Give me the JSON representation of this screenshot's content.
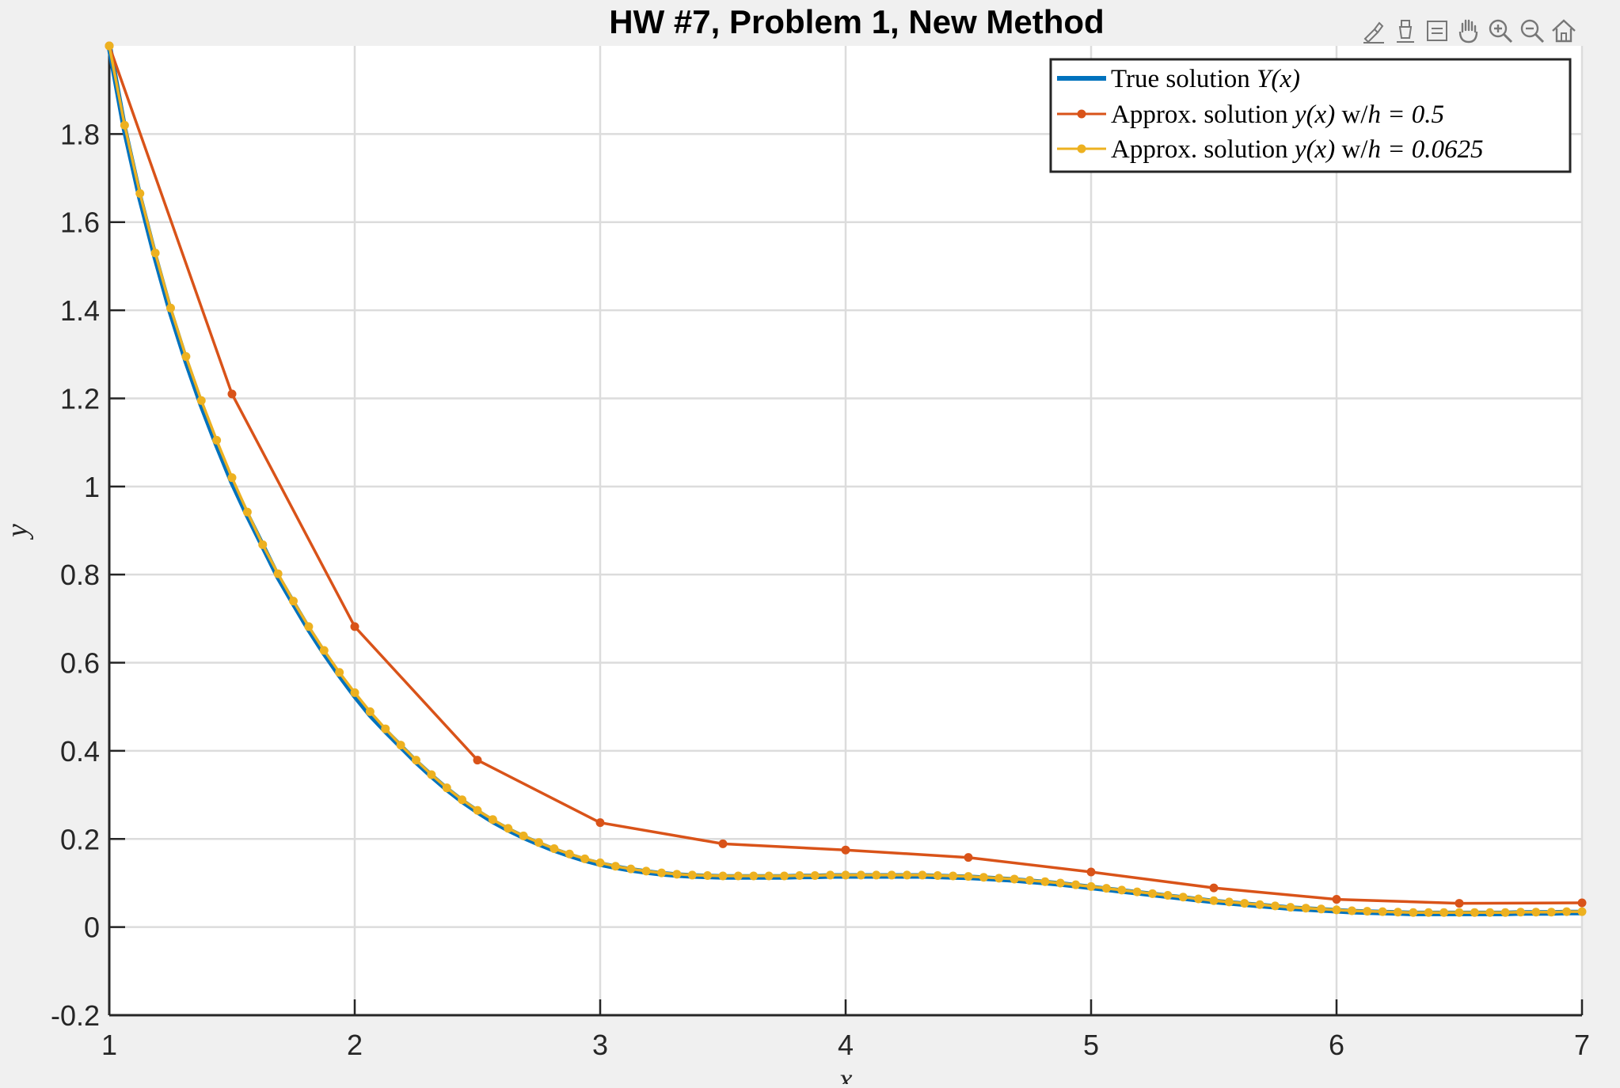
{
  "chart_data": {
    "type": "line",
    "title": "HW #7, Problem 1, New Method",
    "xlabel": "x",
    "ylabel": "y",
    "xlim": [
      1,
      7
    ],
    "ylim": [
      -0.2,
      2.0
    ],
    "xticks": [
      1,
      2,
      3,
      4,
      5,
      6,
      7
    ],
    "yticks": [
      -0.2,
      0,
      0.2,
      0.4,
      0.6,
      0.8,
      1,
      1.2,
      1.4,
      1.6,
      1.8
    ],
    "xtick_labels": [
      "1",
      "2",
      "3",
      "4",
      "5",
      "6",
      "7"
    ],
    "ytick_labels": [
      "-0.2",
      "0",
      "0.2",
      "0.4",
      "0.6",
      "0.8",
      "1",
      "1.2",
      "1.4",
      "1.6",
      "1.8"
    ],
    "grid": true,
    "legend_position": "top-right",
    "series": [
      {
        "name": "True solution Y(x)",
        "legend": {
          "text": "True solution ",
          "math": "Y(x)"
        },
        "color": "#0072bd",
        "marker": false,
        "x": [
          1,
          1.0625,
          1.125,
          1.1875,
          1.25,
          1.3125,
          1.375,
          1.4375,
          1.5,
          1.5625,
          1.625,
          1.6875,
          1.75,
          1.8125,
          1.875,
          1.9375,
          2,
          2.0625,
          2.125,
          2.1875,
          2.25,
          2.3125,
          2.375,
          2.4375,
          2.5,
          2.5625,
          2.625,
          2.6875,
          2.75,
          2.8125,
          2.875,
          2.9375,
          3,
          3.0625,
          3.125,
          3.1875,
          3.25,
          3.3125,
          3.375,
          3.4375,
          3.5,
          3.5625,
          3.625,
          3.6875,
          3.75,
          3.8125,
          3.875,
          3.9375,
          4,
          4.0625,
          4.125,
          4.1875,
          4.25,
          4.3125,
          4.375,
          4.4375,
          4.5,
          4.5625,
          4.625,
          4.6875,
          4.75,
          4.8125,
          4.875,
          4.9375,
          5,
          5.0625,
          5.125,
          5.1875,
          5.25,
          5.3125,
          5.375,
          5.4375,
          5.5,
          5.5625,
          5.625,
          5.6875,
          5.75,
          5.8125,
          5.875,
          5.9375,
          6,
          6.0625,
          6.125,
          6.1875,
          6.25,
          6.3125,
          6.375,
          6.4375,
          6.5,
          6.5625,
          6.625,
          6.6875,
          6.75,
          6.8125,
          6.875,
          6.9375,
          7
        ],
        "y": [
          2.0,
          1.81,
          1.655,
          1.52,
          1.395,
          1.285,
          1.185,
          1.095,
          1.01,
          0.935,
          0.865,
          0.795,
          0.735,
          0.676,
          0.622,
          0.572,
          0.525,
          0.482,
          0.445,
          0.41,
          0.375,
          0.343,
          0.313,
          0.286,
          0.262,
          0.24,
          0.221,
          0.204,
          0.189,
          0.175,
          0.163,
          0.152,
          0.143,
          0.136,
          0.13,
          0.125,
          0.121,
          0.118,
          0.116,
          0.115,
          0.114,
          0.114,
          0.114,
          0.114,
          0.114,
          0.115,
          0.115,
          0.116,
          0.116,
          0.116,
          0.116,
          0.116,
          0.116,
          0.116,
          0.115,
          0.114,
          0.113,
          0.111,
          0.109,
          0.107,
          0.104,
          0.101,
          0.098,
          0.094,
          0.09,
          0.086,
          0.082,
          0.078,
          0.074,
          0.07,
          0.066,
          0.062,
          0.058,
          0.055,
          0.052,
          0.049,
          0.046,
          0.043,
          0.041,
          0.039,
          0.037,
          0.035,
          0.034,
          0.033,
          0.032,
          0.031,
          0.031,
          0.031,
          0.031,
          0.031,
          0.031,
          0.031,
          0.032,
          0.032,
          0.032,
          0.033,
          0.033
        ]
      },
      {
        "name": "Approx. solution y(x) w/h = 0.5",
        "legend": {
          "text": "Approx. solution ",
          "math": "y(x)",
          "text2": " w/",
          "math2": "h = 0.5"
        },
        "color": "#d95319",
        "marker": true,
        "x": [
          1,
          1.5,
          2,
          2.5,
          3,
          3.5,
          4,
          4.5,
          5,
          5.5,
          6,
          6.5,
          7
        ],
        "y": [
          2.0,
          1.21,
          0.682,
          0.379,
          0.237,
          0.189,
          0.175,
          0.158,
          0.125,
          0.089,
          0.063,
          0.054,
          0.055
        ]
      },
      {
        "name": "Approx. solution y(x) w/h = 0.0625",
        "legend": {
          "text": "Approx. solution ",
          "math": "y(x)",
          "text2": " w/",
          "math2": "h = 0.0625"
        },
        "color": "#edb120",
        "marker": true,
        "x": [
          1,
          1.0625,
          1.125,
          1.1875,
          1.25,
          1.3125,
          1.375,
          1.4375,
          1.5,
          1.5625,
          1.625,
          1.6875,
          1.75,
          1.8125,
          1.875,
          1.9375,
          2,
          2.0625,
          2.125,
          2.1875,
          2.25,
          2.3125,
          2.375,
          2.4375,
          2.5,
          2.5625,
          2.625,
          2.6875,
          2.75,
          2.8125,
          2.875,
          2.9375,
          3,
          3.0625,
          3.125,
          3.1875,
          3.25,
          3.3125,
          3.375,
          3.4375,
          3.5,
          3.5625,
          3.625,
          3.6875,
          3.75,
          3.8125,
          3.875,
          3.9375,
          4,
          4.0625,
          4.125,
          4.1875,
          4.25,
          4.3125,
          4.375,
          4.4375,
          4.5,
          4.5625,
          4.625,
          4.6875,
          4.75,
          4.8125,
          4.875,
          4.9375,
          5,
          5.0625,
          5.125,
          5.1875,
          5.25,
          5.3125,
          5.375,
          5.4375,
          5.5,
          5.5625,
          5.625,
          5.6875,
          5.75,
          5.8125,
          5.875,
          5.9375,
          6,
          6.0625,
          6.125,
          6.1875,
          6.25,
          6.3125,
          6.375,
          6.4375,
          6.5,
          6.5625,
          6.625,
          6.6875,
          6.75,
          6.8125,
          6.875,
          6.9375,
          7
        ],
        "y": [
          2.0,
          1.82,
          1.665,
          1.53,
          1.405,
          1.295,
          1.195,
          1.105,
          1.02,
          0.942,
          0.868,
          0.802,
          0.74,
          0.682,
          0.628,
          0.578,
          0.532,
          0.489,
          0.45,
          0.413,
          0.379,
          0.346,
          0.316,
          0.289,
          0.265,
          0.244,
          0.224,
          0.207,
          0.192,
          0.178,
          0.166,
          0.155,
          0.146,
          0.138,
          0.132,
          0.127,
          0.123,
          0.12,
          0.118,
          0.117,
          0.116,
          0.116,
          0.116,
          0.116,
          0.116,
          0.117,
          0.117,
          0.118,
          0.118,
          0.118,
          0.118,
          0.118,
          0.118,
          0.118,
          0.117,
          0.116,
          0.115,
          0.113,
          0.111,
          0.109,
          0.106,
          0.103,
          0.1,
          0.096,
          0.092,
          0.088,
          0.084,
          0.08,
          0.076,
          0.072,
          0.068,
          0.064,
          0.06,
          0.057,
          0.054,
          0.051,
          0.048,
          0.045,
          0.043,
          0.041,
          0.039,
          0.037,
          0.036,
          0.035,
          0.034,
          0.033,
          0.033,
          0.033,
          0.033,
          0.033,
          0.033,
          0.033,
          0.034,
          0.034,
          0.034,
          0.035,
          0.035
        ]
      }
    ]
  },
  "toolbar": {
    "icons": [
      "brush-icon",
      "data-tips-icon",
      "datatip-icon",
      "pan-hand-icon",
      "zoom-in-icon",
      "zoom-out-icon",
      "home-icon"
    ]
  }
}
